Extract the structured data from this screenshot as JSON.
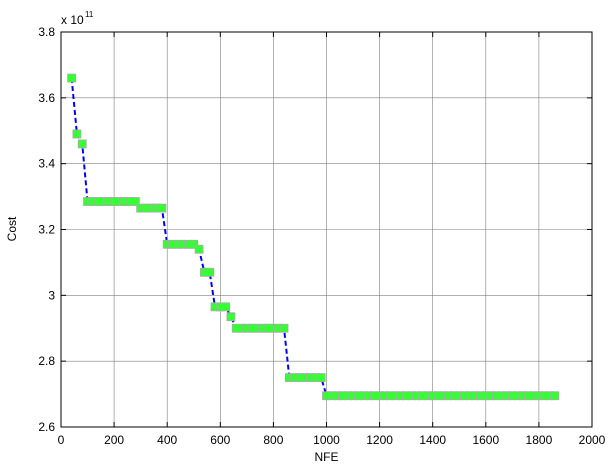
{
  "chart_data": {
    "type": "line",
    "title": "",
    "xlabel": "NFE",
    "ylabel": "Cost",
    "y_exponent_label": "x 10",
    "y_exponent_power": "11",
    "xlim": [
      0,
      2000
    ],
    "ylim": [
      2.6,
      3.8
    ],
    "x_ticks": [
      0,
      200,
      400,
      600,
      800,
      1000,
      1200,
      1400,
      1600,
      1800,
      2000
    ],
    "x_tick_labels": [
      "0",
      "200",
      "400",
      "600",
      "800",
      "1000",
      "1200",
      "1400",
      "1600",
      "1800",
      "2000"
    ],
    "y_ticks": [
      2.6,
      2.8,
      3.0,
      3.2,
      3.4,
      3.6,
      3.8
    ],
    "y_tick_labels": [
      "2.6",
      "2.8",
      "3",
      "3.2",
      "3.4",
      "3.6",
      "3.8"
    ],
    "grid": true,
    "line_color": "#0000ff",
    "line_style": "dashed",
    "marker_color": "#33ff33",
    "marker_edge_color": "#aaaaaa",
    "series": [
      {
        "x": [
          40,
          60,
          80,
          100,
          120,
          140,
          160,
          180,
          200,
          220,
          240,
          260,
          280,
          300,
          320,
          340,
          360,
          380,
          400,
          420,
          440,
          460,
          480,
          500,
          520,
          540,
          560,
          580,
          600,
          620,
          640,
          660,
          680,
          700,
          720,
          740,
          760,
          780,
          800,
          820,
          840,
          860,
          880,
          900,
          920,
          940,
          960,
          980,
          1000,
          1020,
          1040,
          1060,
          1080,
          1100,
          1120,
          1140,
          1160,
          1180,
          1200,
          1220,
          1240,
          1260,
          1280,
          1300,
          1320,
          1340,
          1360,
          1380,
          1400,
          1420,
          1440,
          1460,
          1480,
          1500,
          1520,
          1540,
          1560,
          1580,
          1600,
          1620,
          1640,
          1660,
          1680,
          1700,
          1720,
          1740,
          1760,
          1780,
          1800,
          1820,
          1840,
          1860
        ],
        "y": [
          3.66,
          3.49,
          3.46,
          3.285,
          3.285,
          3.285,
          3.285,
          3.285,
          3.285,
          3.285,
          3.285,
          3.285,
          3.285,
          3.265,
          3.265,
          3.265,
          3.265,
          3.265,
          3.155,
          3.155,
          3.155,
          3.155,
          3.155,
          3.155,
          3.14,
          3.07,
          3.07,
          2.965,
          2.965,
          2.965,
          2.935,
          2.9,
          2.9,
          2.9,
          2.9,
          2.9,
          2.9,
          2.9,
          2.9,
          2.9,
          2.9,
          2.75,
          2.75,
          2.75,
          2.75,
          2.75,
          2.75,
          2.75,
          2.695,
          2.695,
          2.695,
          2.695,
          2.695,
          2.695,
          2.695,
          2.695,
          2.695,
          2.695,
          2.695,
          2.695,
          2.695,
          2.695,
          2.695,
          2.695,
          2.695,
          2.695,
          2.695,
          2.695,
          2.695,
          2.695,
          2.695,
          2.695,
          2.695,
          2.695,
          2.695,
          2.695,
          2.695,
          2.695,
          2.695,
          2.695,
          2.695,
          2.695,
          2.695,
          2.695,
          2.695,
          2.695,
          2.695,
          2.695,
          2.695,
          2.695,
          2.695,
          2.695
        ]
      }
    ]
  }
}
